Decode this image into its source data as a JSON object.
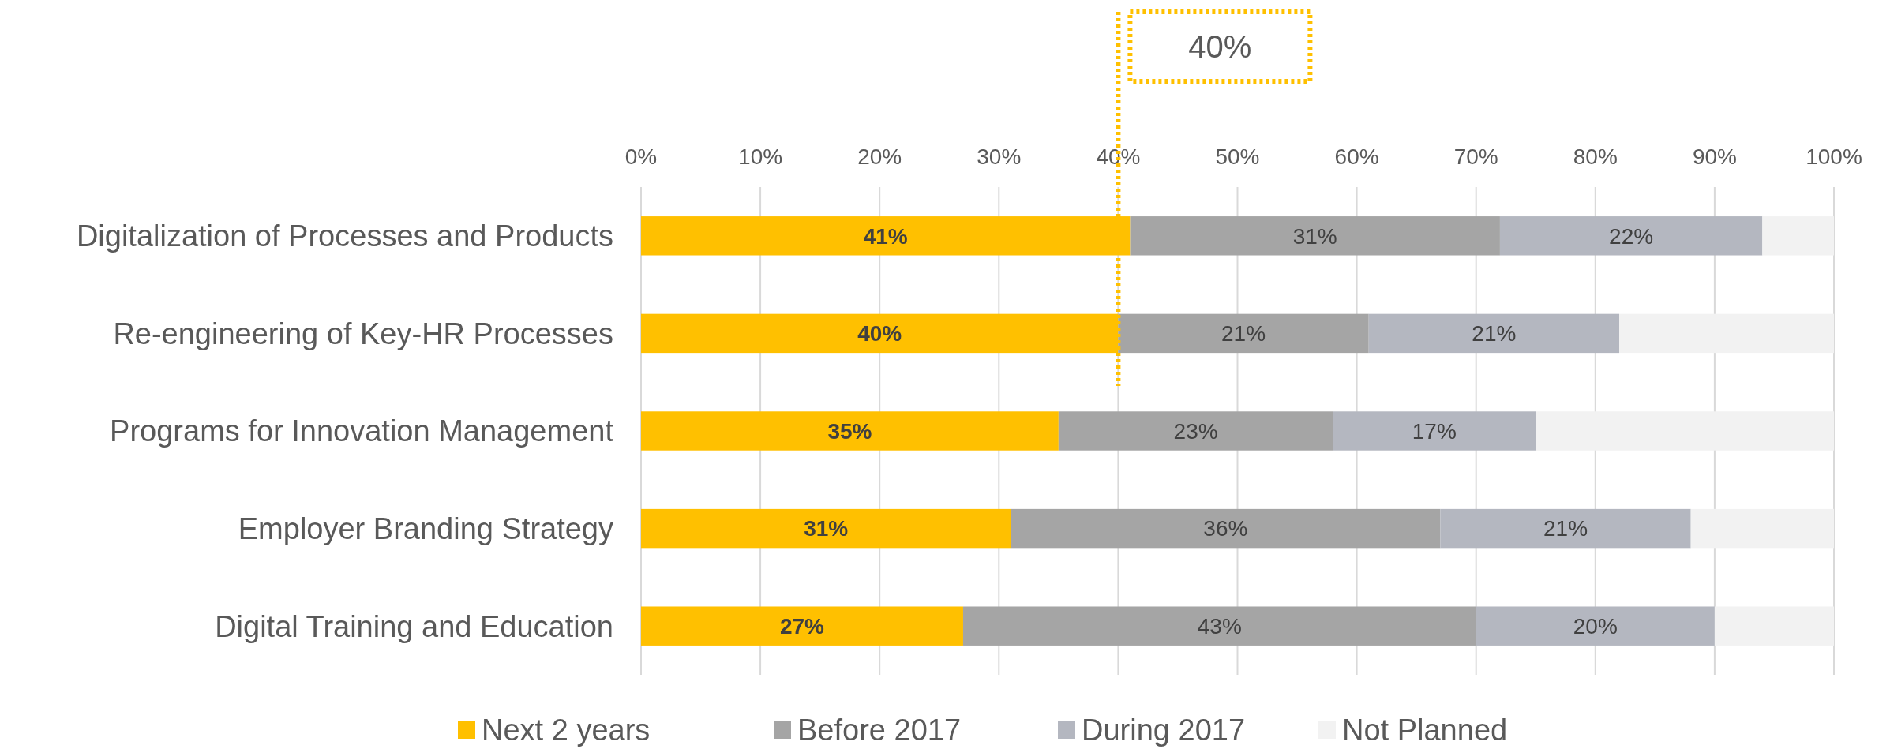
{
  "chart_data": {
    "type": "bar",
    "orientation": "horizontal",
    "stacked": true,
    "categories": [
      "Digitalization of Processes and Products",
      "Re-engineering of Key-HR Processes",
      "Programs for Innovation Management",
      "Employer Branding Strategy",
      "Digital Training and Education"
    ],
    "series": [
      {
        "name": "Next 2 years",
        "color": "#ffc000",
        "values": [
          41,
          40,
          35,
          31,
          27
        ],
        "value_labels": [
          "41%",
          "40%",
          "35%",
          "31%",
          "27%"
        ]
      },
      {
        "name": "Before 2017",
        "color": "#a5a5a5",
        "values": [
          31,
          21,
          23,
          36,
          43
        ],
        "value_labels": [
          "31%",
          "21%",
          "23%",
          "36%",
          "43%"
        ]
      },
      {
        "name": "During 2017",
        "color": "#b4b7c0",
        "values": [
          22,
          21,
          17,
          21,
          20
        ],
        "value_labels": [
          "22%",
          "21%",
          "17%",
          "21%",
          "20%"
        ]
      },
      {
        "name": "Not Planned",
        "color": "#f2f2f2",
        "values": [
          6,
          18,
          25,
          12,
          10
        ]
      }
    ],
    "xlim": [
      0,
      100
    ],
    "xticks": [
      {
        "value": 0,
        "label": "0%"
      },
      {
        "value": 10,
        "label": "10%"
      },
      {
        "value": 20,
        "label": "20%"
      },
      {
        "value": 30,
        "label": "30%"
      },
      {
        "value": 40,
        "label": "40%"
      },
      {
        "value": 50,
        "label": "50%"
      },
      {
        "value": 60,
        "label": "60%"
      },
      {
        "value": 70,
        "label": "70%"
      },
      {
        "value": 80,
        "label": "80%"
      },
      {
        "value": 90,
        "label": "90%"
      },
      {
        "value": 100,
        "label": "100%"
      }
    ],
    "grid": "x",
    "legend": "bottom",
    "ref_lines": [
      {
        "axis": "x",
        "value": 40,
        "label": "40%",
        "color": "#ffc000",
        "line_style": "dotted"
      }
    ]
  }
}
